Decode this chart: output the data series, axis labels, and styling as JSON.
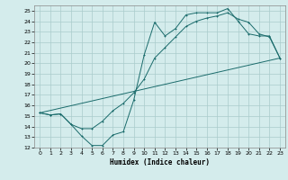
{
  "title": "",
  "xlabel": "Humidex (Indice chaleur)",
  "ylabel": "",
  "background_color": "#d4ecec",
  "grid_color": "#aacccc",
  "line_color": "#1a6b6b",
  "xlim": [
    -0.5,
    23.5
  ],
  "ylim": [
    12,
    25.5
  ],
  "xticks": [
    0,
    1,
    2,
    3,
    4,
    5,
    6,
    7,
    8,
    9,
    10,
    11,
    12,
    13,
    14,
    15,
    16,
    17,
    18,
    19,
    20,
    21,
    22,
    23
  ],
  "yticks": [
    12,
    13,
    14,
    15,
    16,
    17,
    18,
    19,
    20,
    21,
    22,
    23,
    24,
    25
  ],
  "line1_x": [
    0,
    1,
    2,
    3,
    4,
    5,
    6,
    7,
    8,
    9,
    10,
    11,
    12,
    13,
    14,
    15,
    16,
    17,
    18,
    19,
    20,
    21,
    22,
    23
  ],
  "line1_y": [
    15.3,
    15.1,
    15.2,
    14.2,
    13.1,
    12.2,
    12.2,
    13.2,
    13.5,
    16.5,
    20.8,
    23.9,
    22.6,
    23.3,
    24.6,
    24.8,
    24.8,
    24.8,
    25.2,
    24.0,
    22.8,
    22.6,
    22.6,
    20.5
  ],
  "line2_x": [
    0,
    1,
    2,
    3,
    4,
    5,
    6,
    7,
    8,
    9,
    10,
    11,
    12,
    13,
    14,
    15,
    16,
    17,
    18,
    19,
    20,
    21,
    22,
    23
  ],
  "line2_y": [
    15.3,
    15.1,
    15.2,
    14.2,
    13.8,
    13.8,
    14.5,
    15.5,
    16.2,
    17.2,
    18.5,
    20.5,
    21.5,
    22.5,
    23.5,
    24.0,
    24.3,
    24.5,
    24.8,
    24.2,
    23.9,
    22.8,
    22.5,
    20.5
  ],
  "line3_x": [
    0,
    23
  ],
  "line3_y": [
    15.3,
    20.5
  ]
}
